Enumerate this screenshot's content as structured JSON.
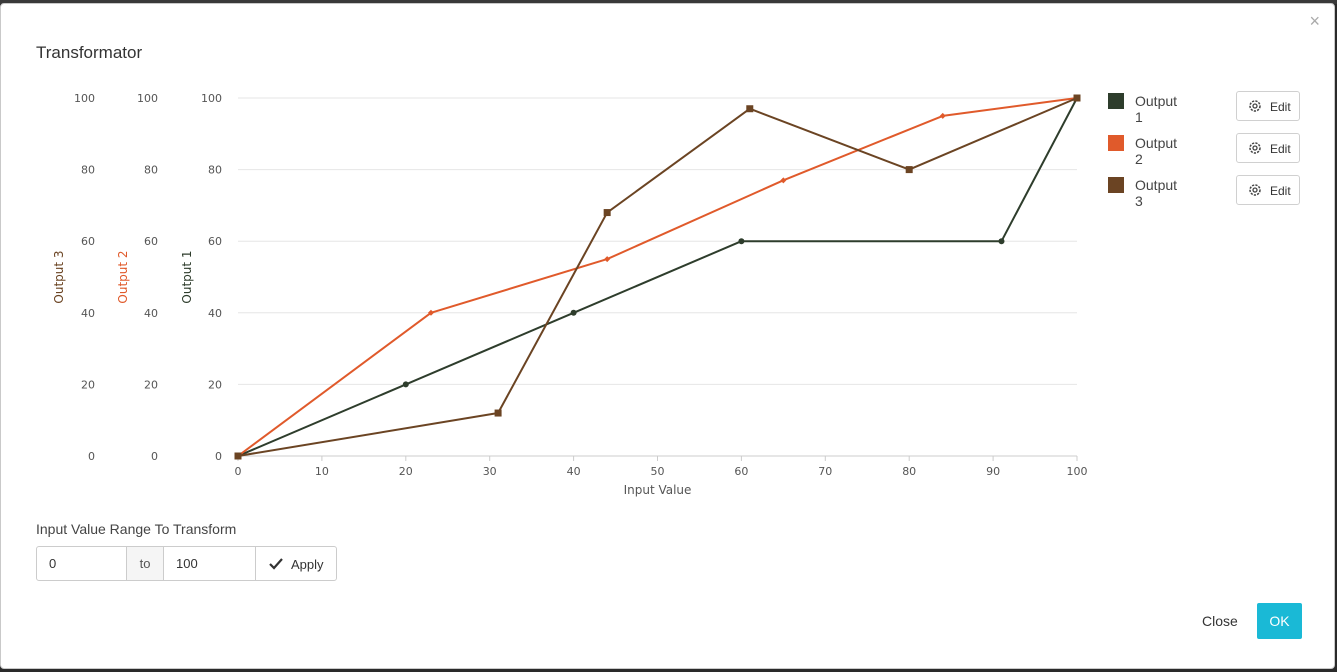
{
  "dialog": {
    "title": "Transformator",
    "close_icon": "close-icon"
  },
  "colors": {
    "output1": "#2e3d2c",
    "output2": "#e05a2b",
    "output3": "#6b4423",
    "ok_button": "#1ab9d6"
  },
  "chart_data": {
    "type": "line",
    "xlabel": "Input Value",
    "xlim": [
      0,
      100
    ],
    "x_ticks": [
      "0",
      "10",
      "20",
      "30",
      "40",
      "50",
      "60",
      "70",
      "80",
      "90",
      "100"
    ],
    "y_ticks": [
      "0",
      "20",
      "40",
      "60",
      "80",
      "100"
    ],
    "y_axes": [
      {
        "label": "Output 1",
        "ylim": [
          0,
          100
        ],
        "color": "#2e3d2c"
      },
      {
        "label": "Output 2",
        "ylim": [
          0,
          100
        ],
        "color": "#e05a2b"
      },
      {
        "label": "Output 3",
        "ylim": [
          0,
          100
        ],
        "color": "#6b4423"
      }
    ],
    "grid": true,
    "legend_position": "right",
    "series": [
      {
        "name": "Output 1",
        "color": "#2e3d2c",
        "marker": "circle",
        "points": [
          [
            0,
            0
          ],
          [
            20,
            20
          ],
          [
            40,
            40
          ],
          [
            60,
            60
          ],
          [
            91,
            60
          ],
          [
            100,
            100
          ]
        ]
      },
      {
        "name": "Output 2",
        "color": "#e05a2b",
        "marker": "diamond",
        "points": [
          [
            0,
            0
          ],
          [
            23,
            40
          ],
          [
            44,
            55
          ],
          [
            65,
            77
          ],
          [
            84,
            95
          ],
          [
            100,
            100
          ]
        ]
      },
      {
        "name": "Output 3",
        "color": "#6b4423",
        "marker": "square",
        "points": [
          [
            0,
            0
          ],
          [
            31,
            12
          ],
          [
            44,
            68
          ],
          [
            61,
            97
          ],
          [
            80,
            80
          ],
          [
            100,
            100
          ]
        ]
      }
    ]
  },
  "legend": [
    {
      "label": "Output 1",
      "edit_label": "Edit",
      "icon": "gear-icon"
    },
    {
      "label": "Output 2",
      "edit_label": "Edit",
      "icon": "gear-icon"
    },
    {
      "label": "Output 3",
      "edit_label": "Edit",
      "icon": "gear-icon"
    }
  ],
  "range": {
    "label": "Input Value Range To Transform",
    "from_value": "0",
    "separator": "to",
    "to_value": "100",
    "apply_label": "Apply",
    "apply_icon": "check-icon"
  },
  "footer": {
    "close_label": "Close",
    "ok_label": "OK"
  }
}
